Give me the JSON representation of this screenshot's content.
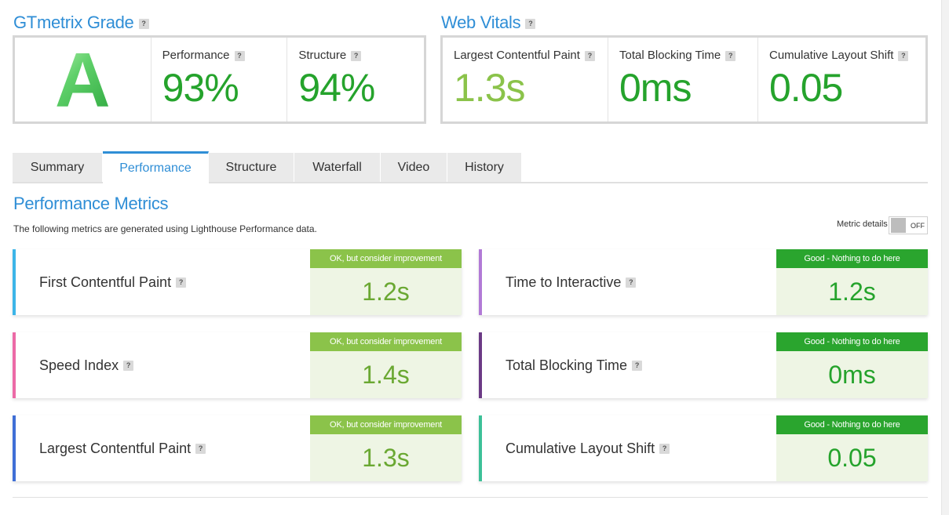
{
  "grade": {
    "title": "GTmetrix Grade",
    "help": "?",
    "letter": "A",
    "performance_label": "Performance",
    "performance_value": "93%",
    "structure_label": "Structure",
    "structure_value": "94%"
  },
  "vitals": {
    "title": "Web Vitals",
    "help": "?",
    "items": [
      {
        "label": "Largest Contentful Paint",
        "value": "1.3s",
        "color": "#8bc34a"
      },
      {
        "label": "Total Blocking Time",
        "value": "0ms",
        "color": "#25a32c"
      },
      {
        "label": "Cumulative Layout Shift",
        "value": "0.05",
        "color": "#25a32c"
      }
    ]
  },
  "tabs": [
    "Summary",
    "Performance",
    "Structure",
    "Waterfall",
    "Video",
    "History"
  ],
  "active_tab": "Performance",
  "perf": {
    "title": "Performance Metrics",
    "subtitle": "The following metrics are generated using Lighthouse Performance data.",
    "metric_details_label": "Metric details",
    "toggle_state": "OFF"
  },
  "metrics": [
    {
      "name": "First Contentful Paint",
      "status": "OK, but consider improvement",
      "value": "1.2s",
      "accent": "#3db5e8"
    },
    {
      "name": "Time to Interactive",
      "status": "Good - Nothing to do here",
      "value": "1.2s",
      "accent": "#b27ad6"
    },
    {
      "name": "Speed Index",
      "status": "OK, but consider improvement",
      "value": "1.4s",
      "accent": "#ec6aa6"
    },
    {
      "name": "Total Blocking Time",
      "status": "Good - Nothing to do here",
      "value": "0ms",
      "accent": "#6b3a85"
    },
    {
      "name": "Largest Contentful Paint",
      "status": "OK, but consider improvement",
      "value": "1.3s",
      "accent": "#3f6fd6"
    },
    {
      "name": "Cumulative Layout Shift",
      "status": "Good - Nothing to do here",
      "value": "0.05",
      "accent": "#3cc098"
    }
  ],
  "colors": {
    "accent_blue": "#2f8ed6",
    "good_green": "#25a32c",
    "ok_green": "#8bc34a"
  }
}
